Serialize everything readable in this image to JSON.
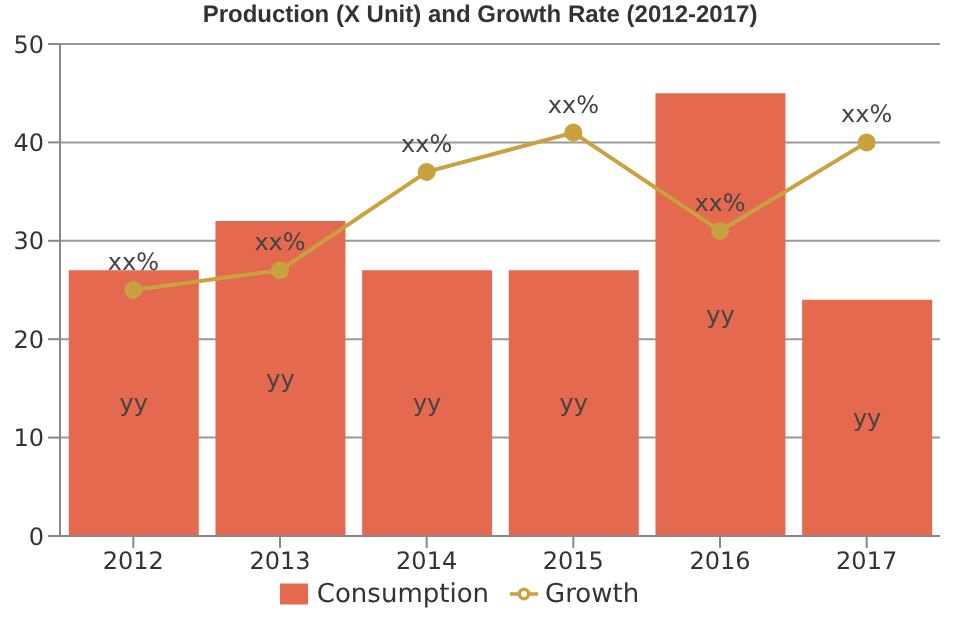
{
  "chart_data": {
    "type": "bar",
    "title": "Production (X Unit) and Growth Rate (2012-2017)",
    "categories": [
      "2012",
      "2013",
      "2014",
      "2015",
      "2016",
      "2017"
    ],
    "series": [
      {
        "name": "Consumption",
        "color": "#e5694f",
        "values": [
          27,
          32,
          27,
          27,
          45,
          24
        ],
        "value_labels": [
          "yy",
          "yy",
          "yy",
          "yy",
          "yy",
          "yy"
        ]
      },
      {
        "name": "Growth",
        "type": "line",
        "color": "#c9a13f",
        "values": [
          25,
          27,
          37,
          41,
          31,
          40
        ],
        "value_labels": [
          "xx%",
          "xx%",
          "xx%",
          "xx%",
          "xx%",
          "xx%"
        ]
      }
    ],
    "ylim": [
      0,
      50
    ],
    "yticks": [
      0,
      10,
      20,
      30,
      40,
      50
    ],
    "grid": "y",
    "legend": "bottom",
    "marker": "circle",
    "line_style": "solid"
  }
}
